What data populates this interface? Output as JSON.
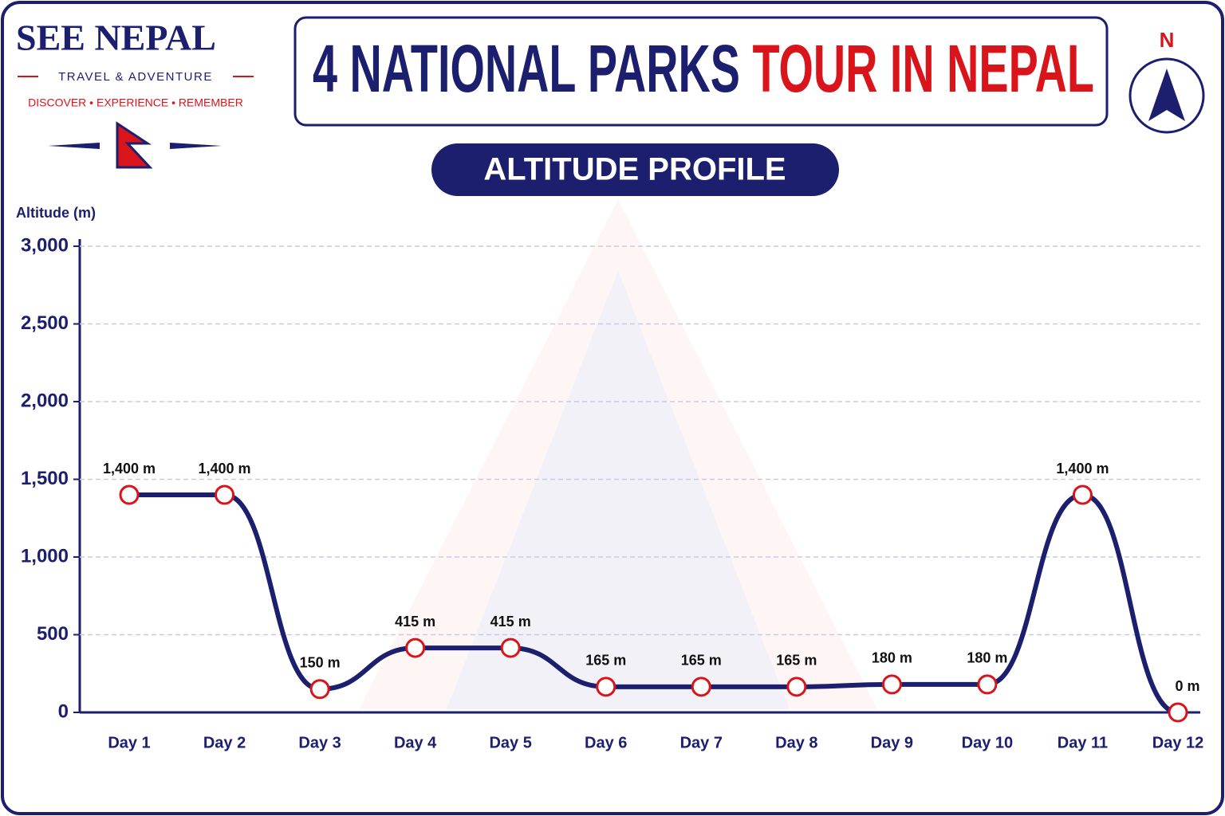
{
  "brand": {
    "name": "SEE NEPAL",
    "tagline": "TRAVEL & ADVENTURE",
    "motto": "DISCOVER • EXPERIENCE • REMEMBER"
  },
  "compass": "N",
  "chart_data": {
    "type": "line",
    "title": "4 NATIONAL PARKS",
    "title_highlight": "TOUR IN NEPAL",
    "subtitle": "ALTITUDE PROFILE",
    "y_label": "Altitude (m)",
    "categories": [
      "Day 1",
      "Day 2",
      "Day 3",
      "Day 4",
      "Day 5",
      "Day 6",
      "Day 7",
      "Day 8",
      "Day 9",
      "Day 10",
      "Day 11",
      "Day 12"
    ],
    "values": [
      1400,
      1400,
      150,
      415,
      415,
      165,
      165,
      165,
      180,
      180,
      1400,
      0
    ],
    "value_labels": [
      "1,400 m",
      "1,400 m",
      "150 m",
      "415 m",
      "415 m",
      "165 m",
      "165 m",
      "165 m",
      "180 m",
      "180 m",
      "1,400 m",
      "0 m"
    ],
    "color": "#1b1f6e",
    "marker_color": "#d9141b",
    "ylim": [
      0,
      3000
    ],
    "yticks": [
      0,
      500,
      {
        "value": 1000,
        "label": "1,000"
      },
      {
        "value": 1500,
        "label": "1,500"
      },
      {
        "value": 2000,
        "label": "2,000"
      },
      {
        "value": 2500,
        "label": "2,500"
      },
      {
        "value": 3000,
        "label": "3,000"
      }
    ],
    "grid": true
  }
}
